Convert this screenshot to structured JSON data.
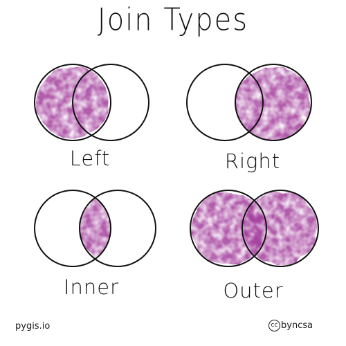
{
  "title": "Join Types",
  "fill_color": "#a4409e",
  "outline_color": "#111111",
  "joins": [
    {
      "name": "Left",
      "shaded_region": "left-circle"
    },
    {
      "name": "Right",
      "shaded_region": "right-circle"
    },
    {
      "name": "Inner",
      "shaded_region": "intersection"
    },
    {
      "name": "Outer",
      "shaded_region": "union"
    }
  ],
  "footer": {
    "site": "pygis.io",
    "license_symbol": "cc",
    "license": "byncsa"
  }
}
